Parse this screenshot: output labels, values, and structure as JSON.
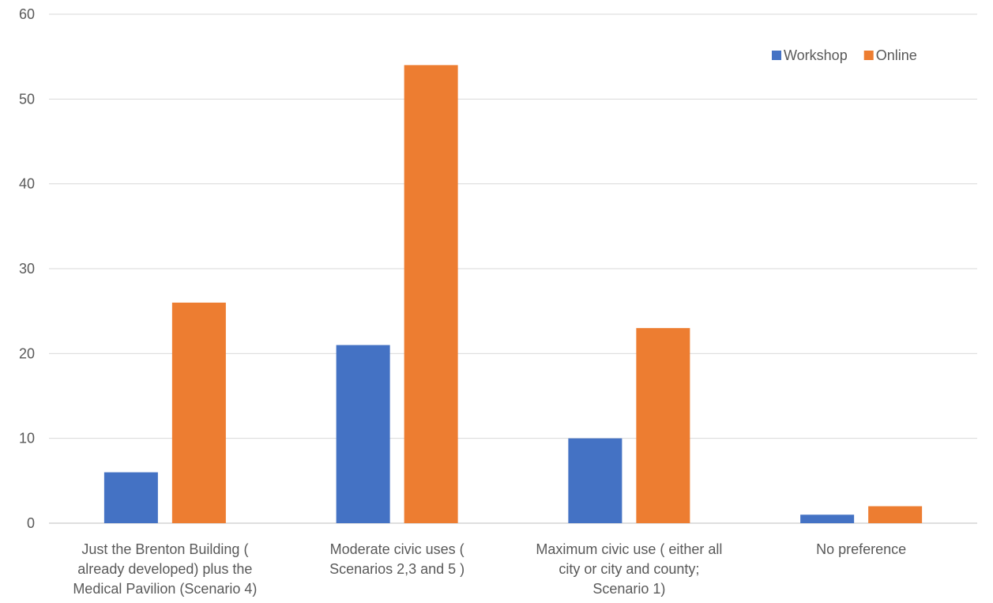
{
  "chart_data": {
    "type": "bar",
    "categories": [
      [
        "Just the Brenton Building (",
        "already developed) plus the",
        "Medical Pavilion (Scenario 4)"
      ],
      [
        "Moderate civic uses (",
        "Scenarios 2,3 and 5 )"
      ],
      [
        "Maximum civic use ( either all",
        "city or city and county;",
        "Scenario 1)"
      ],
      [
        "No preference"
      ]
    ],
    "series": [
      {
        "name": "Workshop",
        "color": "#4472C4",
        "values": [
          6,
          21,
          10,
          1
        ]
      },
      {
        "name": "Online",
        "color": "#ED7D31",
        "values": [
          26,
          54,
          23,
          2
        ]
      }
    ],
    "ylim": [
      0,
      60
    ],
    "yticks": [
      0,
      10,
      20,
      30,
      40,
      50,
      60
    ],
    "grid": true,
    "legend": "top-right"
  }
}
